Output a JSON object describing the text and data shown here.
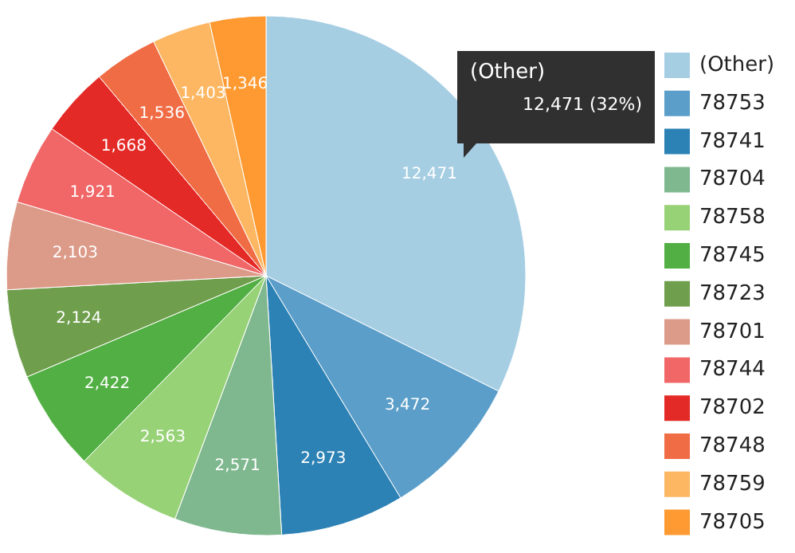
{
  "chart_data": {
    "type": "pie",
    "categories": [
      "(Other)",
      "78753",
      "78741",
      "78704",
      "78758",
      "78745",
      "78723",
      "78701",
      "78744",
      "78702",
      "78748",
      "78759",
      "78705"
    ],
    "values": [
      12471,
      3472,
      2973,
      2571,
      2563,
      2422,
      2124,
      2103,
      1921,
      1668,
      1536,
      1403,
      1346
    ],
    "value_labels": [
      "12,471",
      "3,472",
      "2,973",
      "2,571",
      "2,563",
      "2,422",
      "2,124",
      "2,103",
      "1,921",
      "1,668",
      "1,536",
      "1,403",
      "1,346"
    ],
    "colors": [
      "#a6cee3",
      "#5b9ec9",
      "#2d82b5",
      "#7fb88f",
      "#98d277",
      "#52af43",
      "#6f9e4c",
      "#dc9a88",
      "#f16667",
      "#e42a27",
      "#f06c45",
      "#fdb762",
      "#fe9a31"
    ],
    "legend": "right",
    "annotations": [
      "(Other)",
      "12,471 (32%)"
    ]
  }
}
